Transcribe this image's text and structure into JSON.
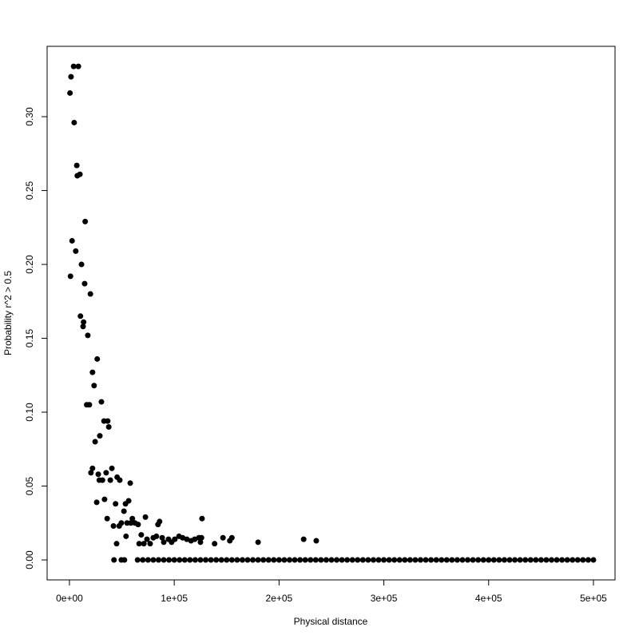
{
  "chart_data": {
    "type": "scatter",
    "x_label": "Physical distance",
    "y_label": "Probability  r^2 > 0.5",
    "color": "#000000",
    "xlim": [
      -21300,
      520600
    ],
    "ylim": [
      -0.0135,
      0.3476
    ],
    "xticks": [
      {
        "value": 0,
        "label": "0e+00"
      },
      {
        "value": 100000,
        "label": "1e+05"
      },
      {
        "value": 200000,
        "label": "2e+05"
      },
      {
        "value": 300000,
        "label": "3e+05"
      },
      {
        "value": 400000,
        "label": "4e+05"
      },
      {
        "value": 500000,
        "label": "5e+05"
      }
    ],
    "yticks": [
      {
        "value": 0,
        "label": "0.00"
      },
      {
        "value": 0.05,
        "label": "0.05"
      },
      {
        "value": 0.1,
        "label": "0.10"
      },
      {
        "value": 0.15,
        "label": "0.15"
      },
      {
        "value": 0.2,
        "label": "0.20"
      },
      {
        "value": 0.25,
        "label": "0.25"
      },
      {
        "value": 0.3,
        "label": "0.30"
      }
    ],
    "x": [
      500,
      1500,
      4000,
      8500,
      4500,
      7000,
      7500,
      10000,
      15000,
      2500,
      6000,
      1000,
      11500,
      14500,
      20000,
      10500,
      13500,
      13000,
      17500,
      26500,
      22000,
      23500,
      16500,
      19000,
      30500,
      33000,
      36500,
      37500,
      29000,
      24500,
      40500,
      22000,
      20500,
      35000,
      27500,
      28500,
      31500,
      39000,
      45500,
      48000,
      58000,
      33500,
      26000,
      44000,
      53500,
      56500,
      36000,
      42000,
      47500,
      49500,
      52000,
      55000,
      58500,
      60000,
      62500,
      65500,
      45000,
      54000,
      68500,
      66500,
      72500,
      71000,
      74000,
      77000,
      80000,
      83000,
      86000,
      84500,
      88500,
      90000,
      94500,
      97500,
      100500,
      104500,
      108000,
      112000,
      116000,
      119500,
      123500,
      125000,
      126500,
      126000,
      138500,
      146500,
      153000,
      155000,
      180000,
      223500,
      235500,
      42500,
      49500,
      52500,
      65000,
      70000,
      75000,
      80000,
      85000,
      90000,
      95000,
      100000,
      105000,
      110000,
      115000,
      120000,
      125000,
      130000,
      135000,
      140000,
      145000,
      150000,
      155000,
      160000,
      165000,
      170000,
      175000,
      180000,
      185000,
      190000,
      195000,
      200000,
      205000,
      210000,
      215000,
      220000,
      225000,
      230000,
      235000,
      240000,
      245000,
      250000,
      255000,
      260000,
      265000,
      270000,
      275000,
      280000,
      285000,
      290000,
      295000,
      300000,
      305000,
      310000,
      315000,
      320000,
      325000,
      330000,
      335000,
      340000,
      345000,
      350000,
      355000,
      360000,
      365000,
      370000,
      375000,
      380000,
      385000,
      390000,
      395000,
      400000,
      405000,
      410000,
      415000,
      420000,
      425000,
      430000,
      435000,
      440000,
      445000,
      450000,
      455000,
      460000,
      465000,
      470000,
      475000,
      480000,
      485000,
      490000,
      495000,
      500000
    ],
    "values": [
      0.316,
      0.327,
      0.334,
      0.334,
      0.296,
      0.267,
      0.26,
      0.261,
      0.229,
      0.216,
      0.209,
      0.192,
      0.2,
      0.187,
      0.18,
      0.165,
      0.161,
      0.158,
      0.152,
      0.136,
      0.127,
      0.118,
      0.105,
      0.105,
      0.107,
      0.094,
      0.094,
      0.09,
      0.084,
      0.08,
      0.062,
      0.062,
      0.059,
      0.059,
      0.058,
      0.054,
      0.054,
      0.054,
      0.056,
      0.054,
      0.052,
      0.041,
      0.039,
      0.038,
      0.038,
      0.04,
      0.028,
      0.023,
      0.023,
      0.025,
      0.033,
      0.025,
      0.025,
      0.028,
      0.025,
      0.024,
      0.011,
      0.016,
      0.017,
      0.011,
      0.029,
      0.011,
      0.014,
      0.011,
      0.015,
      0.016,
      0.026,
      0.024,
      0.015,
      0.012,
      0.014,
      0.012,
      0.014,
      0.016,
      0.015,
      0.014,
      0.013,
      0.014,
      0.015,
      0.012,
      0.028,
      0.015,
      0.011,
      0.015,
      0.013,
      0.015,
      0.012,
      0.014,
      0.013,
      0,
      0,
      0,
      0,
      0,
      0,
      0,
      0,
      0,
      0,
      0,
      0,
      0,
      0,
      0,
      0,
      0,
      0,
      0,
      0,
      0,
      0,
      0,
      0,
      0,
      0,
      0,
      0,
      0,
      0,
      0,
      0,
      0,
      0,
      0,
      0,
      0,
      0,
      0,
      0,
      0,
      0,
      0,
      0,
      0,
      0,
      0,
      0,
      0,
      0,
      0,
      0,
      0,
      0,
      0,
      0,
      0,
      0,
      0,
      0,
      0,
      0,
      0,
      0,
      0,
      0,
      0,
      0,
      0,
      0,
      0,
      0,
      0,
      0,
      0,
      0,
      0,
      0,
      0,
      0,
      0,
      0,
      0,
      0,
      0,
      0,
      0,
      0,
      0,
      0,
      0
    ]
  }
}
